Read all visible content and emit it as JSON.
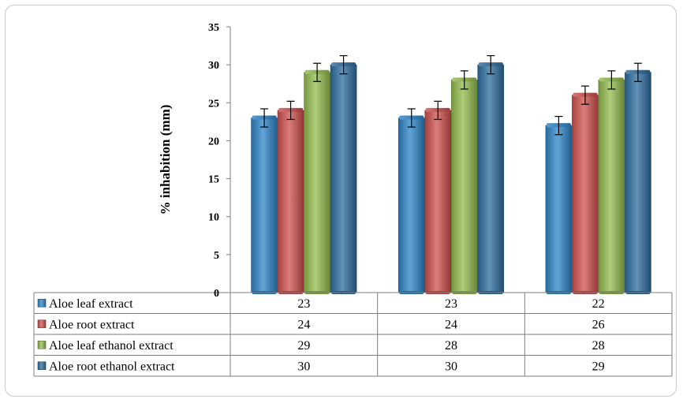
{
  "chart_data": {
    "type": "bar",
    "title": "",
    "ylabel": "% inhabition (mm)",
    "xlabel": "",
    "ylim": [
      0,
      35
    ],
    "yticks": [
      0,
      5,
      10,
      15,
      20,
      25,
      30,
      35
    ],
    "yticks_text": [
      "0",
      "5",
      "10",
      "15",
      "20",
      "25",
      "30",
      "35"
    ],
    "categories": [
      "",
      "",
      ""
    ],
    "legend": "data-table",
    "error_bar": 1.2,
    "series": [
      {
        "name": "Aloe leaf extract",
        "values": [
          23,
          23,
          22
        ],
        "values_text": [
          "23",
          "23",
          "22"
        ],
        "color": "#2e86c9"
      },
      {
        "name": "Aloe root extract",
        "values": [
          24,
          24,
          26
        ],
        "values_text": [
          "24",
          "24",
          "26"
        ],
        "color": "#d0514e"
      },
      {
        "name": "Aloe leaf ethanol extract",
        "values": [
          29,
          28,
          28
        ],
        "values_text": [
          "29",
          "28",
          "28"
        ],
        "color": "#94bd4f"
      },
      {
        "name": "Aloe root ethanol extract",
        "values": [
          30,
          30,
          29
        ],
        "values_text": [
          "30",
          "30",
          "29"
        ],
        "color": "#2f6ea0"
      }
    ]
  }
}
